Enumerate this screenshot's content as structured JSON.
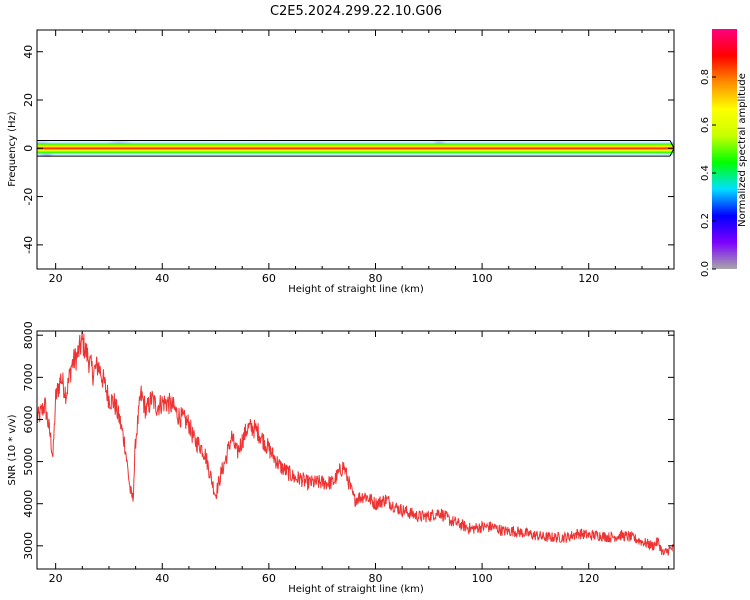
{
  "title": "C2E5.2024.299.22.10.G06",
  "chart_data": [
    {
      "type": "heatmap",
      "xlabel": "Height of straight line (km)",
      "ylabel": "Frequency (Hz)",
      "xlim": [
        16.5,
        136
      ],
      "ylim": [
        -50,
        49
      ],
      "xticks": [
        "20",
        "40",
        "60",
        "80",
        "100",
        "120"
      ],
      "yticks": [
        "40",
        "20",
        "0",
        "-20",
        "-40"
      ],
      "band_center_hz": 0,
      "band_halfwidth_hz": 2,
      "blobs": [
        {
          "x": 17.5,
          "y": 0,
          "rx": 2.0,
          "ry": 3.5,
          "amp": 0.25
        },
        {
          "x": 18.5,
          "y": -2,
          "rx": 1.5,
          "ry": 2.0,
          "amp": 0.15
        },
        {
          "x": 32,
          "y": 1,
          "rx": 3.0,
          "ry": 2.6,
          "amp": 0.2
        },
        {
          "x": 37,
          "y": 0,
          "rx": 4.0,
          "ry": 2.0,
          "amp": 0.15
        },
        {
          "x": 49,
          "y": 0,
          "rx": 3.0,
          "ry": 2.4,
          "amp": 0.2
        },
        {
          "x": 59,
          "y": 1,
          "rx": 3.0,
          "ry": 1.5,
          "amp": 0.1
        },
        {
          "x": 92,
          "y": 1.5,
          "rx": 1.5,
          "ry": 2.2,
          "amp": 0.2
        }
      ],
      "colorbar": {
        "label": "Normalized spectral amplitude",
        "ticks": [
          "0.0",
          "0.2",
          "0.4",
          "0.6",
          "0.8"
        ],
        "range": [
          0,
          1
        ],
        "stops": [
          "#a7a7a7",
          "#7c00ff",
          "#0000ff",
          "#00e0ff",
          "#00ff00",
          "#c8ff00",
          "#ffff00",
          "#ff8c00",
          "#ff0000",
          "#ff0080"
        ]
      }
    },
    {
      "type": "line",
      "xlabel": "Height of straight line (km)",
      "ylabel": "SNR (10 * v/v)",
      "xlim": [
        16.5,
        136
      ],
      "ylim": [
        2450,
        8100
      ],
      "xticks": [
        "20",
        "40",
        "60",
        "80",
        "100",
        "120"
      ],
      "yticks": [
        "8000",
        "7000",
        "6000",
        "5000",
        "4000",
        "3000"
      ],
      "color": "#ee3333",
      "x": [
        16.5,
        17,
        18,
        19,
        19.5,
        20,
        21,
        22,
        23,
        24,
        25,
        26,
        27,
        28,
        29,
        30,
        31,
        32,
        33,
        34,
        34.5,
        35,
        36,
        37,
        38,
        39,
        40,
        41,
        42,
        43,
        44,
        45,
        46,
        47,
        48,
        49,
        50,
        51,
        52,
        53,
        54,
        55,
        56,
        57,
        58,
        59,
        60,
        61,
        62,
        63,
        64,
        65,
        66,
        67,
        68,
        70,
        72,
        74,
        76,
        78,
        80,
        82,
        84,
        86,
        88,
        90,
        92,
        94,
        96,
        98,
        100,
        102,
        104,
        106,
        108,
        110,
        112,
        114,
        116,
        118,
        120,
        122,
        124,
        126,
        128,
        130,
        132,
        133,
        134,
        135,
        136
      ],
      "y": [
        6000,
        6100,
        6350,
        5600,
        5100,
        6500,
        7000,
        6600,
        7300,
        7500,
        7850,
        7500,
        7100,
        7300,
        6900,
        6500,
        6400,
        6000,
        5400,
        4300,
        4100,
        5500,
        6600,
        6200,
        6500,
        6300,
        6400,
        6400,
        6300,
        6100,
        6000,
        5900,
        5500,
        5400,
        5200,
        4700,
        4200,
        4700,
        5100,
        5600,
        5200,
        5500,
        5800,
        5800,
        5700,
        5500,
        5300,
        5100,
        4900,
        4800,
        4700,
        4600,
        4600,
        4500,
        4500,
        4500,
        4500,
        4900,
        4100,
        4200,
        4000,
        4100,
        3900,
        3800,
        3700,
        3700,
        3800,
        3600,
        3500,
        3400,
        3450,
        3450,
        3350,
        3350,
        3300,
        3250,
        3200,
        3200,
        3200,
        3300,
        3250,
        3250,
        3200,
        3250,
        3200,
        3100,
        3000,
        3100,
        2800,
        2900,
        2950
      ]
    }
  ]
}
